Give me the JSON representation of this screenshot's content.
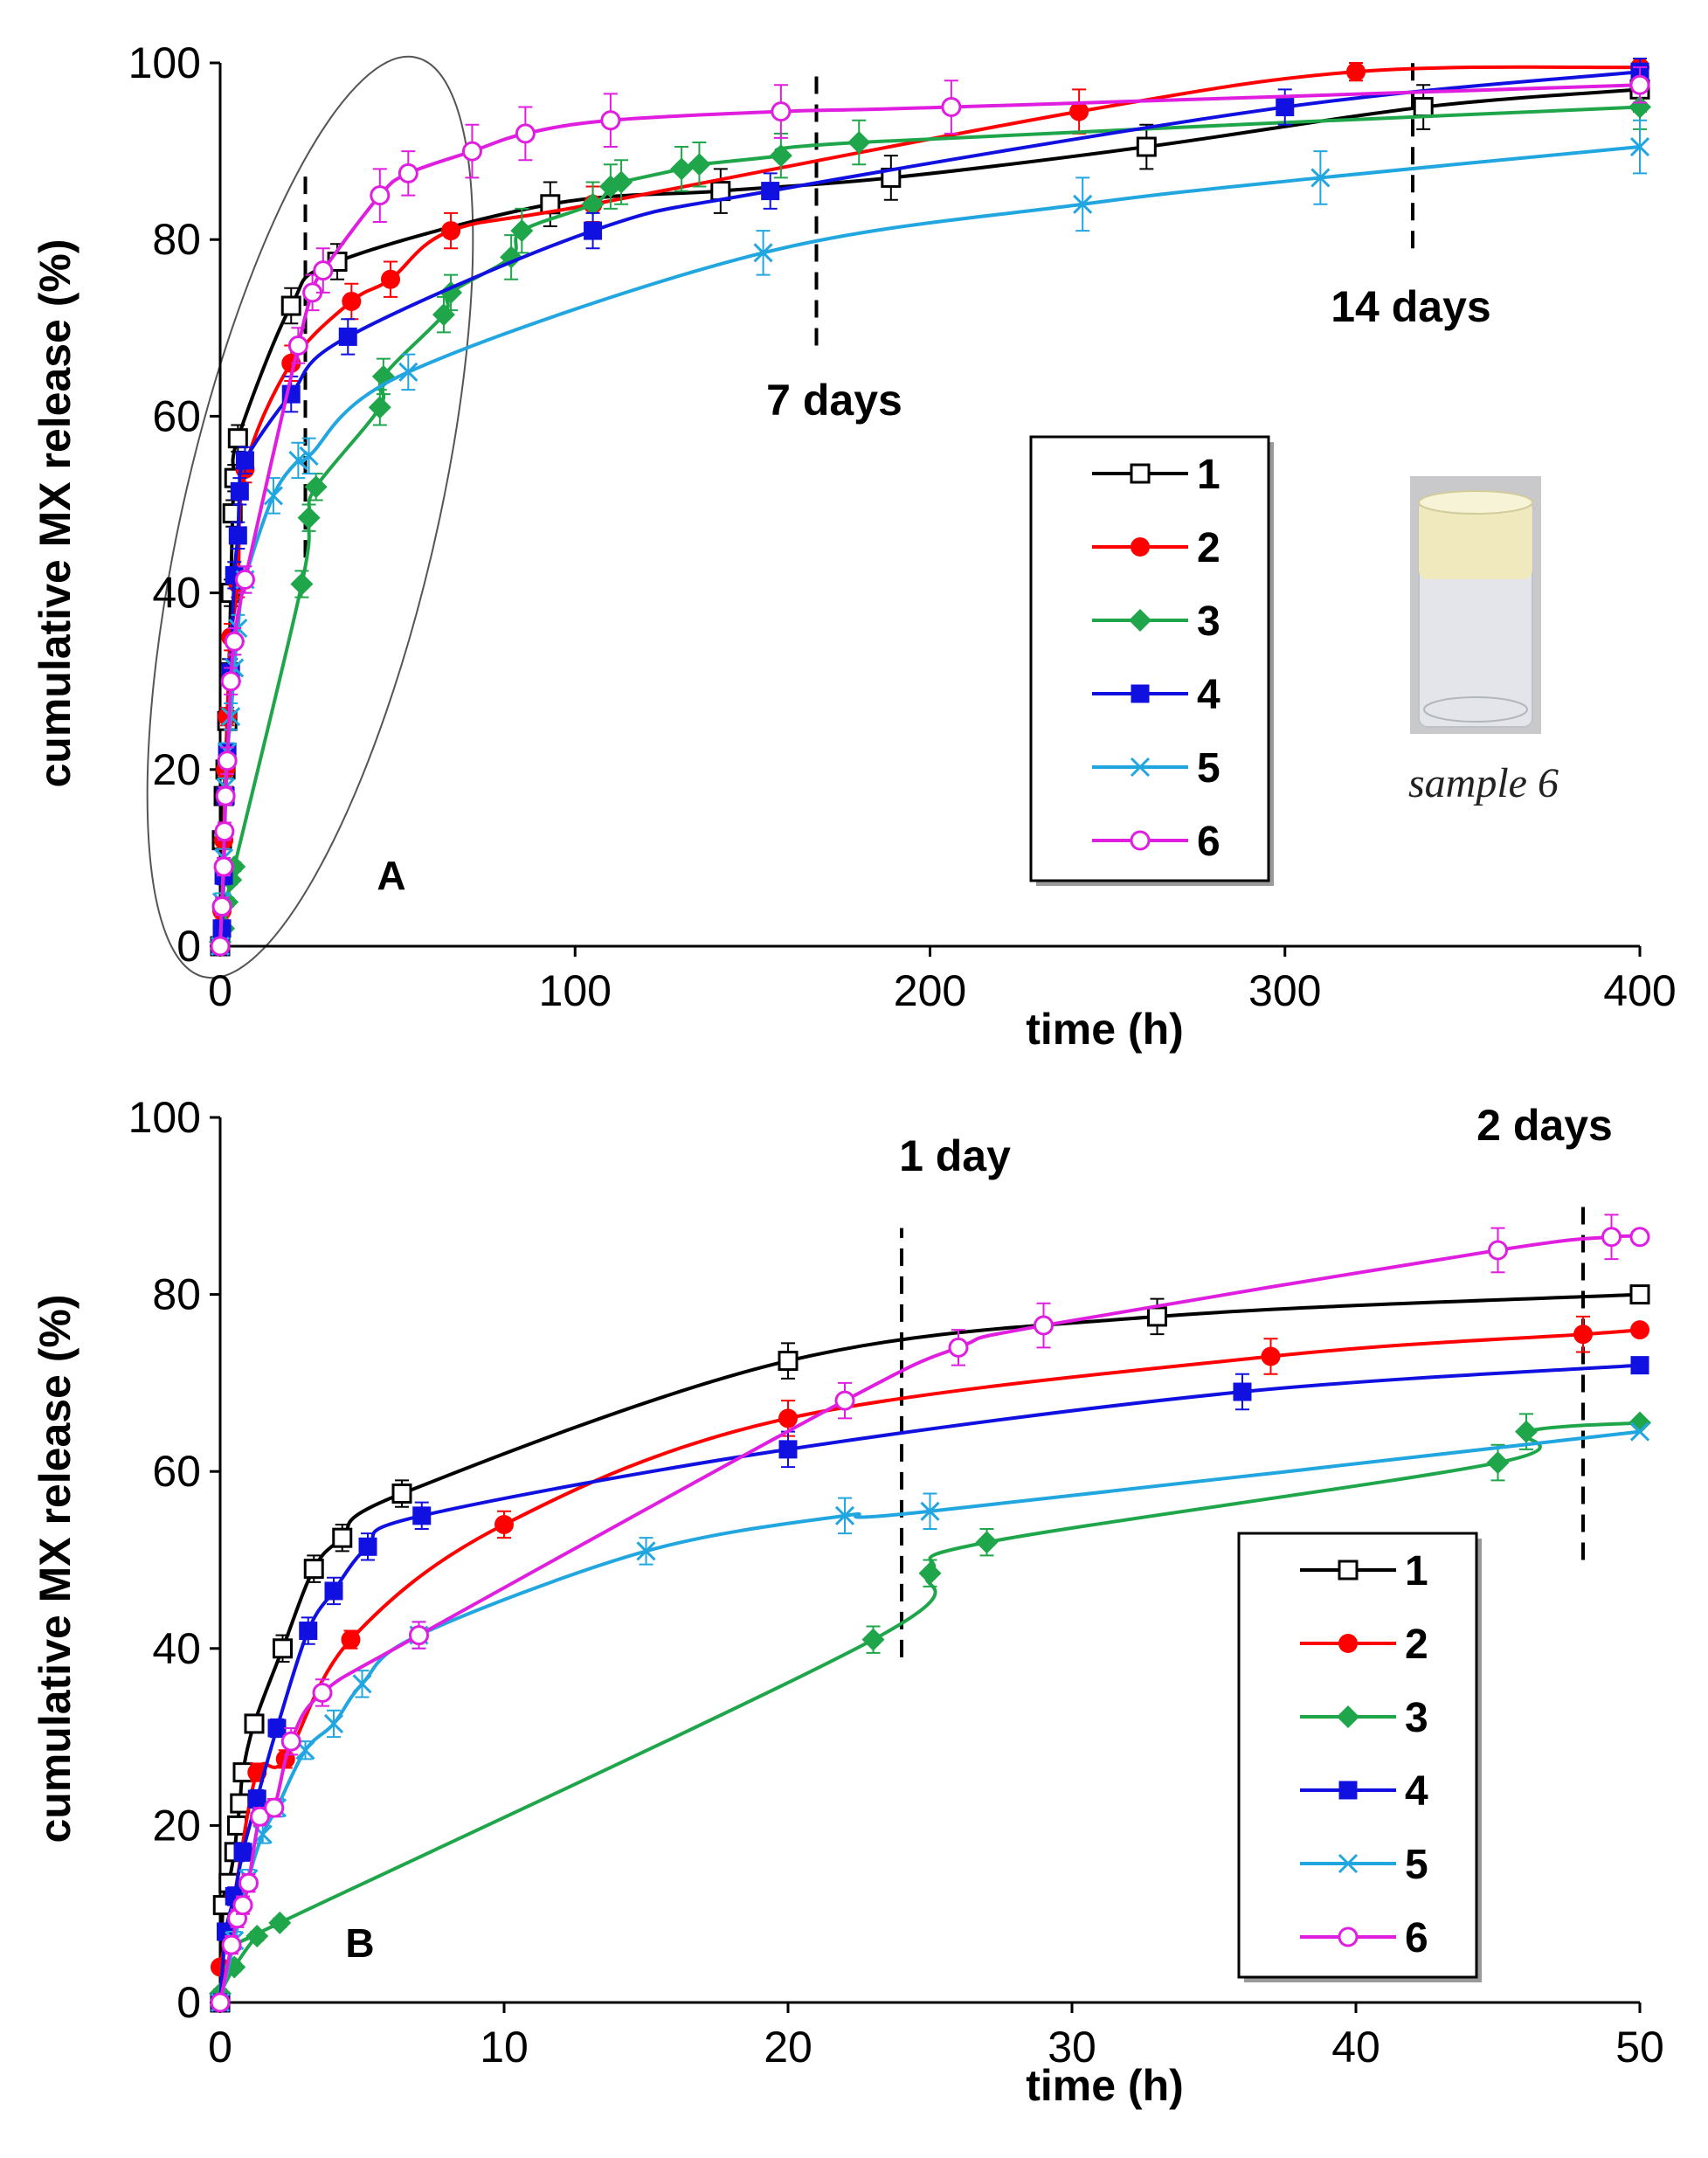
{
  "colors": {
    "1": "#000000",
    "2": "#ff0000",
    "3": "#1fa64a",
    "4": "#1010e0",
    "5": "#21a6e0",
    "6": "#e01ee0"
  },
  "chart_data": [
    {
      "type": "line",
      "panel_label": "A",
      "xlabel": "time (h)",
      "ylabel": "cumulative MX release (%)",
      "xlim": [
        0,
        400
      ],
      "ylim": [
        0,
        100
      ],
      "xticks": [
        0,
        100,
        200,
        300,
        400
      ],
      "yticks": [
        0,
        20,
        40,
        60,
        80,
        100
      ],
      "vlines": [
        {
          "x": 24,
          "y0": 44,
          "y1": 88,
          "label": ""
        },
        {
          "x": 168,
          "y0": 68,
          "y1": 99,
          "label": "7 days"
        },
        {
          "x": 336,
          "y0": 79,
          "y1": 100,
          "label": "14 days"
        }
      ],
      "annotation": "early time region highlighted by ellipse",
      "inset_photo_caption": "sample 6",
      "legend_position": "center-right",
      "series": [
        {
          "name": "1",
          "marker": "square-open",
          "points": [
            [
              0,
              0
            ],
            [
              0.5,
              12
            ],
            [
              1,
              17
            ],
            [
              1.5,
              20
            ],
            [
              2,
              25.5
            ],
            [
              2.5,
              31
            ],
            [
              3,
              40
            ],
            [
              3.5,
              49
            ],
            [
              4,
              53
            ],
            [
              5,
              57.5
            ],
            [
              20,
              72.5
            ],
            [
              33,
              77.5
            ],
            [
              93,
              84
            ],
            [
              141,
              85.5
            ],
            [
              189,
              87
            ],
            [
              261,
              90.5
            ],
            [
              339,
              95
            ],
            [
              400,
              97
            ]
          ],
          "errors": [
            0,
            1,
            1,
            1,
            1,
            1.5,
            1.5,
            1.5,
            1.5,
            1.5,
            2,
            2,
            2.5,
            2.5,
            2.5,
            2.5,
            2.5,
            2.5
          ]
        },
        {
          "name": "2",
          "marker": "circle-filled",
          "points": [
            [
              0,
              0
            ],
            [
              0.5,
              4
            ],
            [
              1,
              12
            ],
            [
              1.5,
              20
            ],
            [
              2,
              26
            ],
            [
              3,
              35
            ],
            [
              5,
              41
            ],
            [
              7,
              54
            ],
            [
              20,
              66
            ],
            [
              37,
              73
            ],
            [
              48,
              75.5
            ],
            [
              65,
              81
            ],
            [
              105,
              84
            ],
            [
              242,
              94.5
            ],
            [
              320,
              99
            ],
            [
              400,
              99.5
            ]
          ],
          "errors": [
            0,
            1,
            1,
            1,
            1,
            1.5,
            1.5,
            1.5,
            2,
            2,
            2,
            2,
            2,
            2.5,
            1,
            1
          ]
        },
        {
          "name": "3",
          "marker": "diamond-filled",
          "points": [
            [
              0,
              0.5
            ],
            [
              1,
              2
            ],
            [
              2,
              5
            ],
            [
              3,
              7.5
            ],
            [
              4,
              9
            ],
            [
              23,
              41
            ],
            [
              25,
              48.5
            ],
            [
              27,
              52
            ],
            [
              45,
              61
            ],
            [
              46,
              64.5
            ],
            [
              63,
              71.5
            ],
            [
              65,
              74
            ],
            [
              82,
              78
            ],
            [
              85,
              81
            ],
            [
              105,
              84
            ],
            [
              110,
              86
            ],
            [
              113,
              86.5
            ],
            [
              130,
              88
            ],
            [
              135,
              88.5
            ],
            [
              158,
              89.5
            ],
            [
              180,
              91
            ],
            [
              400,
              95
            ]
          ],
          "errors": [
            0,
            0.5,
            0.5,
            0.5,
            0.5,
            1.5,
            1.5,
            1.5,
            2,
            2,
            2,
            2,
            2.5,
            2.5,
            2.5,
            2.5,
            2.5,
            2.5,
            2.5,
            2.5,
            2.5,
            2.5
          ]
        },
        {
          "name": "4",
          "marker": "square-filled",
          "points": [
            [
              0,
              0
            ],
            [
              0.5,
              2
            ],
            [
              1,
              8
            ],
            [
              1.5,
              17
            ],
            [
              2,
              22
            ],
            [
              3,
              31
            ],
            [
              4,
              42
            ],
            [
              5,
              46.5
            ],
            [
              5.5,
              51.5
            ],
            [
              7,
              55
            ],
            [
              20,
              62.5
            ],
            [
              36,
              69
            ],
            [
              105,
              81
            ],
            [
              155,
              85.5
            ],
            [
              300,
              95
            ],
            [
              400,
              99
            ]
          ],
          "errors": [
            0,
            0.5,
            1,
            1,
            1,
            1.5,
            1.5,
            1.5,
            1.5,
            1.5,
            2,
            2,
            2,
            2,
            2,
            1.5
          ]
        },
        {
          "name": "5",
          "marker": "cross",
          "points": [
            [
              0,
              0
            ],
            [
              0.5,
              5
            ],
            [
              1,
              10
            ],
            [
              1.5,
              18
            ],
            [
              2,
              22
            ],
            [
              3,
              26
            ],
            [
              4,
              31.5
            ],
            [
              5,
              36
            ],
            [
              7,
              41.5
            ],
            [
              15,
              51
            ],
            [
              22,
              55
            ],
            [
              25,
              55.5
            ],
            [
              53,
              65
            ],
            [
              153,
              78.5
            ],
            [
              243,
              84
            ],
            [
              310,
              87
            ],
            [
              400,
              90.5
            ]
          ],
          "errors": [
            0,
            1,
            1,
            1,
            1,
            1.5,
            1.5,
            1.5,
            1.5,
            2,
            2,
            2,
            2,
            2.5,
            3,
            3,
            3
          ]
        },
        {
          "name": "6",
          "marker": "circle-open",
          "points": [
            [
              0,
              0
            ],
            [
              0.5,
              4.5
            ],
            [
              1,
              9
            ],
            [
              1.2,
              13
            ],
            [
              1.5,
              17
            ],
            [
              2,
              21
            ],
            [
              3,
              30
            ],
            [
              4,
              34.5
            ],
            [
              7,
              41.5
            ],
            [
              22,
              68
            ],
            [
              26,
              74
            ],
            [
              29,
              76.5
            ],
            [
              45,
              85
            ],
            [
              53,
              87.5
            ],
            [
              71,
              90
            ],
            [
              86,
              92
            ],
            [
              110,
              93.5
            ],
            [
              158,
              94.5
            ],
            [
              206,
              95
            ],
            [
              400,
              97.5
            ]
          ],
          "errors": [
            0,
            1,
            1,
            1,
            1,
            1.5,
            1.5,
            1.5,
            1.5,
            2,
            2,
            2.5,
            3,
            2.5,
            3,
            3,
            3,
            3,
            3,
            2
          ]
        }
      ]
    },
    {
      "type": "line",
      "panel_label": "B",
      "xlabel": "time (h)",
      "ylabel": "cumulative MX release (%)",
      "xlim": [
        0,
        50
      ],
      "ylim": [
        0,
        100
      ],
      "xticks": [
        0,
        10,
        20,
        30,
        40,
        50
      ],
      "yticks": [
        0,
        20,
        40,
        60,
        80,
        100
      ],
      "vlines": [
        {
          "x": 24,
          "y0": 39,
          "y1": 87.5,
          "label": "1 day"
        },
        {
          "x": 48,
          "y0": 50,
          "y1": 90,
          "label": "2 days"
        }
      ],
      "legend_position": "bottom-right",
      "series": [
        {
          "name": "1",
          "marker": "square-open",
          "points": [
            [
              0,
              0
            ],
            [
              0.1,
              11
            ],
            [
              0.3,
              13.5
            ],
            [
              0.5,
              17
            ],
            [
              0.6,
              20
            ],
            [
              0.7,
              22.5
            ],
            [
              0.8,
              26
            ],
            [
              1.2,
              31.5
            ],
            [
              2.2,
              40
            ],
            [
              3.3,
              49
            ],
            [
              4.3,
              52.5
            ],
            [
              6.4,
              57.5
            ],
            [
              20,
              72.5
            ],
            [
              33,
              77.5
            ],
            [
              50,
              80
            ]
          ],
          "errors": [
            0,
            0.5,
            0.5,
            1,
            1,
            1,
            1,
            1,
            1.5,
            1.5,
            1.5,
            1.5,
            2,
            2,
            0
          ]
        },
        {
          "name": "2",
          "marker": "circle-filled",
          "points": [
            [
              0,
              4
            ],
            [
              0.5,
              12
            ],
            [
              1.3,
              26
            ],
            [
              2.3,
              27.5
            ],
            [
              4.6,
              41
            ],
            [
              10,
              54
            ],
            [
              20,
              66
            ],
            [
              37,
              73
            ],
            [
              48,
              75.5
            ],
            [
              50,
              76
            ]
          ],
          "errors": [
            0,
            1,
            1,
            1,
            1,
            1.5,
            2,
            2,
            2,
            0
          ]
        },
        {
          "name": "3",
          "marker": "diamond-filled",
          "points": [
            [
              0,
              1
            ],
            [
              0.5,
              4
            ],
            [
              1.3,
              7.5
            ],
            [
              2.1,
              9
            ],
            [
              23,
              41
            ],
            [
              25,
              48.5
            ],
            [
              27,
              52
            ],
            [
              45,
              61
            ],
            [
              46,
              64.5
            ],
            [
              50,
              65.5
            ]
          ],
          "errors": [
            0.5,
            0.5,
            0.5,
            0.5,
            1.5,
            1.5,
            1.5,
            2,
            2,
            0
          ]
        },
        {
          "name": "4",
          "marker": "square-filled",
          "points": [
            [
              0,
              0
            ],
            [
              0.2,
              8
            ],
            [
              0.5,
              12
            ],
            [
              0.8,
              17
            ],
            [
              1.3,
              23
            ],
            [
              2,
              31
            ],
            [
              3.1,
              42
            ],
            [
              4,
              46.5
            ],
            [
              5.2,
              51.5
            ],
            [
              7.1,
              55
            ],
            [
              20,
              62.5
            ],
            [
              36,
              69
            ],
            [
              50,
              72
            ]
          ],
          "errors": [
            0,
            0.5,
            1,
            1,
            1,
            1,
            1.5,
            1.5,
            1.5,
            1.5,
            2,
            2,
            0
          ]
        },
        {
          "name": "5",
          "marker": "cross",
          "points": [
            [
              0,
              0
            ],
            [
              0.5,
              7
            ],
            [
              1,
              14
            ],
            [
              1.5,
              19
            ],
            [
              2,
              22
            ],
            [
              3,
              28.5
            ],
            [
              4,
              31.5
            ],
            [
              5,
              36
            ],
            [
              7,
              41.5
            ],
            [
              15,
              51
            ],
            [
              22,
              55
            ],
            [
              25,
              55.5
            ],
            [
              50,
              64.5
            ]
          ],
          "errors": [
            0,
            1,
            1,
            1,
            1,
            1,
            1.5,
            1.5,
            1.5,
            1.5,
            2,
            2,
            0
          ]
        },
        {
          "name": "6",
          "marker": "circle-open",
          "points": [
            [
              0,
              0
            ],
            [
              0.4,
              6.5
            ],
            [
              0.6,
              9.5
            ],
            [
              0.8,
              11
            ],
            [
              1,
              13.5
            ],
            [
              1.4,
              21
            ],
            [
              1.9,
              22
            ],
            [
              2.5,
              29.5
            ],
            [
              3.6,
              35
            ],
            [
              7,
              41.5
            ],
            [
              22,
              68
            ],
            [
              26,
              74
            ],
            [
              29,
              76.5
            ],
            [
              45,
              85
            ],
            [
              49,
              86.5
            ],
            [
              50,
              86.5
            ]
          ],
          "errors": [
            0,
            1,
            1,
            1,
            1,
            1,
            1,
            1.5,
            1.5,
            1.5,
            2,
            2,
            2.5,
            2.5,
            2.5,
            0
          ]
        }
      ]
    }
  ]
}
